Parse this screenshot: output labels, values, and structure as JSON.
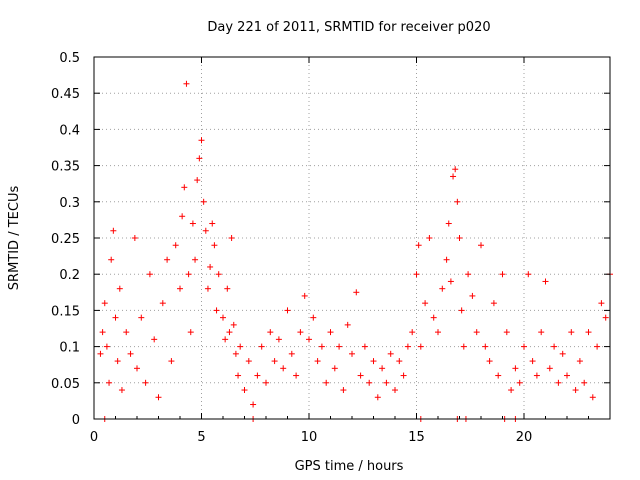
{
  "chart_data": {
    "type": "scatter",
    "title": "Day 221 of 2011, SRMTID for receiver p020",
    "xlabel": "GPS time / hours",
    "ylabel": "SRMTID / TECUs",
    "xlim": [
      0,
      24
    ],
    "ylim": [
      0,
      0.5
    ],
    "xticks": [
      0,
      5,
      10,
      15,
      20
    ],
    "yticks": [
      0,
      0.05,
      0.1,
      0.15,
      0.2,
      0.25,
      0.3,
      0.35,
      0.4,
      0.45,
      0.5
    ],
    "xtick_labels": [
      "0",
      "5",
      "10",
      "15",
      "20"
    ],
    "ytick_labels": [
      "0",
      "0.05",
      "0.1",
      "0.15",
      "0.2",
      "0.25",
      "0.3",
      "0.35",
      "0.4",
      "0.45",
      "0.5"
    ],
    "grid": true,
    "marker": "+",
    "color": "#ff0000",
    "series": [
      {
        "name": "SRMTID",
        "points": [
          [
            0.3,
            0.09
          ],
          [
            0.4,
            0.12
          ],
          [
            0.5,
            0.16
          ],
          [
            0.6,
            0.1
          ],
          [
            0.7,
            0.05
          ],
          [
            0.8,
            0.22
          ],
          [
            0.9,
            0.26
          ],
          [
            1.0,
            0.14
          ],
          [
            1.1,
            0.08
          ],
          [
            1.2,
            0.18
          ],
          [
            1.3,
            0.04
          ],
          [
            1.5,
            0.12
          ],
          [
            1.7,
            0.09
          ],
          [
            1.9,
            0.25
          ],
          [
            2.0,
            0.07
          ],
          [
            2.2,
            0.14
          ],
          [
            2.4,
            0.05
          ],
          [
            2.6,
            0.2
          ],
          [
            2.8,
            0.11
          ],
          [
            3.0,
            0.03
          ],
          [
            3.2,
            0.16
          ],
          [
            3.4,
            0.22
          ],
          [
            3.6,
            0.08
          ],
          [
            3.8,
            0.24
          ],
          [
            4.0,
            0.18
          ],
          [
            4.1,
            0.28
          ],
          [
            4.2,
            0.32
          ],
          [
            4.3,
            0.463
          ],
          [
            4.4,
            0.2
          ],
          [
            4.5,
            0.12
          ],
          [
            4.6,
            0.27
          ],
          [
            4.7,
            0.22
          ],
          [
            4.8,
            0.33
          ],
          [
            4.9,
            0.36
          ],
          [
            5.0,
            0.385
          ],
          [
            5.1,
            0.3
          ],
          [
            5.2,
            0.26
          ],
          [
            5.3,
            0.18
          ],
          [
            5.4,
            0.21
          ],
          [
            5.5,
            0.27
          ],
          [
            5.6,
            0.24
          ],
          [
            5.7,
            0.15
          ],
          [
            5.8,
            0.2
          ],
          [
            6.0,
            0.14
          ],
          [
            6.1,
            0.11
          ],
          [
            6.2,
            0.18
          ],
          [
            6.3,
            0.12
          ],
          [
            6.4,
            0.25
          ],
          [
            6.5,
            0.13
          ],
          [
            6.6,
            0.09
          ],
          [
            6.7,
            0.06
          ],
          [
            6.8,
            0.1
          ],
          [
            7.0,
            0.04
          ],
          [
            7.2,
            0.08
          ],
          [
            7.4,
            0.02
          ],
          [
            7.6,
            0.06
          ],
          [
            7.8,
            0.1
          ],
          [
            8.0,
            0.05
          ],
          [
            8.2,
            0.12
          ],
          [
            8.4,
            0.08
          ],
          [
            8.6,
            0.11
          ],
          [
            8.8,
            0.07
          ],
          [
            9.0,
            0.15
          ],
          [
            9.2,
            0.09
          ],
          [
            9.4,
            0.06
          ],
          [
            9.6,
            0.12
          ],
          [
            9.8,
            0.17
          ],
          [
            10.0,
            0.11
          ],
          [
            10.2,
            0.14
          ],
          [
            10.4,
            0.08
          ],
          [
            10.6,
            0.1
          ],
          [
            10.8,
            0.05
          ],
          [
            11.0,
            0.12
          ],
          [
            11.2,
            0.07
          ],
          [
            11.4,
            0.1
          ],
          [
            11.6,
            0.04
          ],
          [
            11.8,
            0.13
          ],
          [
            12.0,
            0.09
          ],
          [
            12.2,
            0.175
          ],
          [
            12.4,
            0.06
          ],
          [
            12.6,
            0.1
          ],
          [
            12.8,
            0.05
          ],
          [
            13.0,
            0.08
          ],
          [
            13.2,
            0.03
          ],
          [
            13.4,
            0.07
          ],
          [
            13.6,
            0.05
          ],
          [
            13.8,
            0.09
          ],
          [
            14.0,
            0.04
          ],
          [
            14.2,
            0.08
          ],
          [
            14.4,
            0.06
          ],
          [
            14.6,
            0.1
          ],
          [
            14.8,
            0.12
          ],
          [
            15.0,
            0.2
          ],
          [
            15.1,
            0.24
          ],
          [
            15.2,
            0.1
          ],
          [
            15.4,
            0.16
          ],
          [
            15.6,
            0.25
          ],
          [
            15.8,
            0.14
          ],
          [
            16.0,
            0.12
          ],
          [
            16.2,
            0.18
          ],
          [
            16.4,
            0.22
          ],
          [
            16.5,
            0.27
          ],
          [
            16.6,
            0.19
          ],
          [
            16.7,
            0.335
          ],
          [
            16.8,
            0.345
          ],
          [
            16.9,
            0.3
          ],
          [
            17.0,
            0.25
          ],
          [
            17.1,
            0.15
          ],
          [
            17.2,
            0.1
          ],
          [
            17.4,
            0.2
          ],
          [
            17.6,
            0.17
          ],
          [
            17.8,
            0.12
          ],
          [
            18.0,
            0.24
          ],
          [
            18.2,
            0.1
          ],
          [
            18.4,
            0.08
          ],
          [
            18.6,
            0.16
          ],
          [
            18.8,
            0.06
          ],
          [
            19.0,
            0.2
          ],
          [
            19.2,
            0.12
          ],
          [
            19.4,
            0.04
          ],
          [
            19.6,
            0.07
          ],
          [
            19.8,
            0.05
          ],
          [
            20.0,
            0.1
          ],
          [
            20.2,
            0.2
          ],
          [
            20.4,
            0.08
          ],
          [
            20.6,
            0.06
          ],
          [
            20.8,
            0.12
          ],
          [
            21.0,
            0.19
          ],
          [
            21.2,
            0.07
          ],
          [
            21.4,
            0.1
          ],
          [
            21.6,
            0.05
          ],
          [
            21.8,
            0.09
          ],
          [
            22.0,
            0.06
          ],
          [
            22.2,
            0.12
          ],
          [
            22.4,
            0.04
          ],
          [
            22.6,
            0.08
          ],
          [
            22.8,
            0.05
          ],
          [
            23.0,
            0.12
          ],
          [
            23.2,
            0.03
          ],
          [
            23.4,
            0.1
          ],
          [
            23.6,
            0.16
          ],
          [
            23.8,
            0.14
          ],
          [
            24.0,
            0.2
          ],
          [
            0.5,
            0.0
          ],
          [
            16.9,
            0.0
          ],
          [
            17.3,
            0.0
          ],
          [
            19.1,
            0.0
          ],
          [
            19.6,
            0.0
          ],
          [
            15.2,
            0.0
          ],
          [
            7.4,
            0.0
          ]
        ]
      }
    ]
  }
}
